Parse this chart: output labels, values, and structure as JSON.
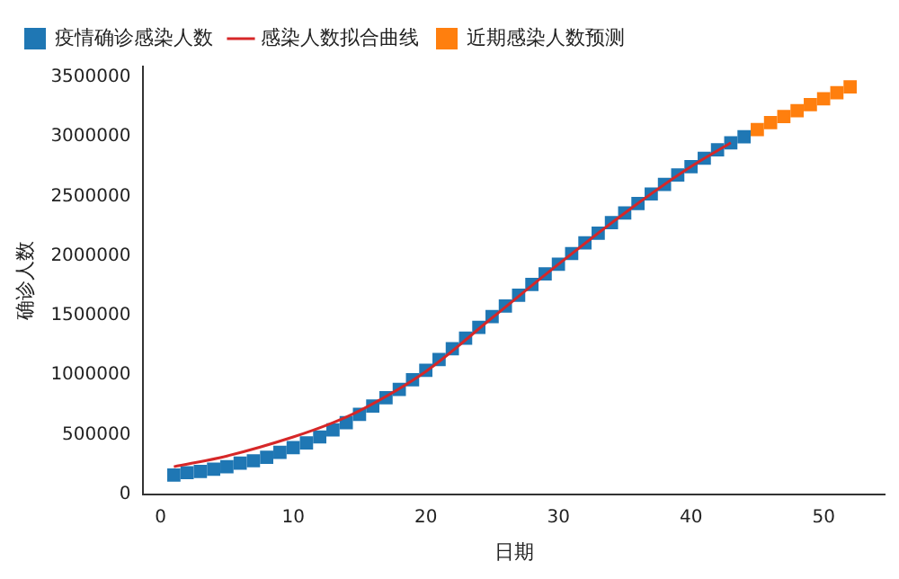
{
  "chart_data": {
    "type": "scatter",
    "xlabel": "日期",
    "ylabel": "确诊人数",
    "xlim": [
      -1.3,
      54.6
    ],
    "ylim": [
      0,
      3590000
    ],
    "xticks": [
      0,
      10,
      20,
      30,
      40,
      50
    ],
    "yticks": [
      0,
      500000,
      1000000,
      1500000,
      2000000,
      2500000,
      3000000,
      3500000
    ],
    "grid": false,
    "legend": "top left",
    "marker": "square",
    "series": [
      {
        "name": "疫情确诊感染人数",
        "color": "#1f77b4",
        "x": [
          1,
          2,
          3,
          4,
          5,
          6,
          7,
          8,
          9,
          10,
          11,
          12,
          13,
          14,
          15,
          16,
          17,
          18,
          19,
          20,
          21,
          22,
          23,
          24,
          25,
          26,
          27,
          28,
          29,
          30,
          31,
          32,
          33,
          34,
          35,
          36,
          37,
          38,
          39,
          40,
          41,
          42,
          43,
          44
        ],
        "values": [
          160000,
          180000,
          190000,
          210000,
          230000,
          260000,
          280000,
          310000,
          350000,
          390000,
          430000,
          480000,
          540000,
          600000,
          670000,
          740000,
          810000,
          880000,
          960000,
          1040000,
          1130000,
          1220000,
          1310000,
          1400000,
          1490000,
          1580000,
          1670000,
          1760000,
          1850000,
          1930000,
          2020000,
          2110000,
          2190000,
          2280000,
          2360000,
          2440000,
          2520000,
          2600000,
          2680000,
          2750000,
          2820000,
          2890000,
          2950000,
          3000000
        ]
      },
      {
        "name": "感染人数拟合曲线",
        "type": "line",
        "marker": "none",
        "color": "#d62728",
        "x": [
          1,
          5,
          10,
          13,
          15,
          20,
          25,
          30,
          35,
          40,
          43
        ],
        "values": [
          230000,
          320000,
          480000,
          600000,
          700000,
          1030000,
          1480000,
          1930000,
          2360000,
          2750000,
          2950000
        ]
      },
      {
        "name": "近期感染人数预测",
        "color": "#ff7f0e",
        "x": [
          45,
          46,
          47,
          48,
          49,
          50,
          51,
          52
        ],
        "values": [
          3060000,
          3120000,
          3170000,
          3220000,
          3270000,
          3320000,
          3370000,
          3420000
        ]
      }
    ]
  }
}
